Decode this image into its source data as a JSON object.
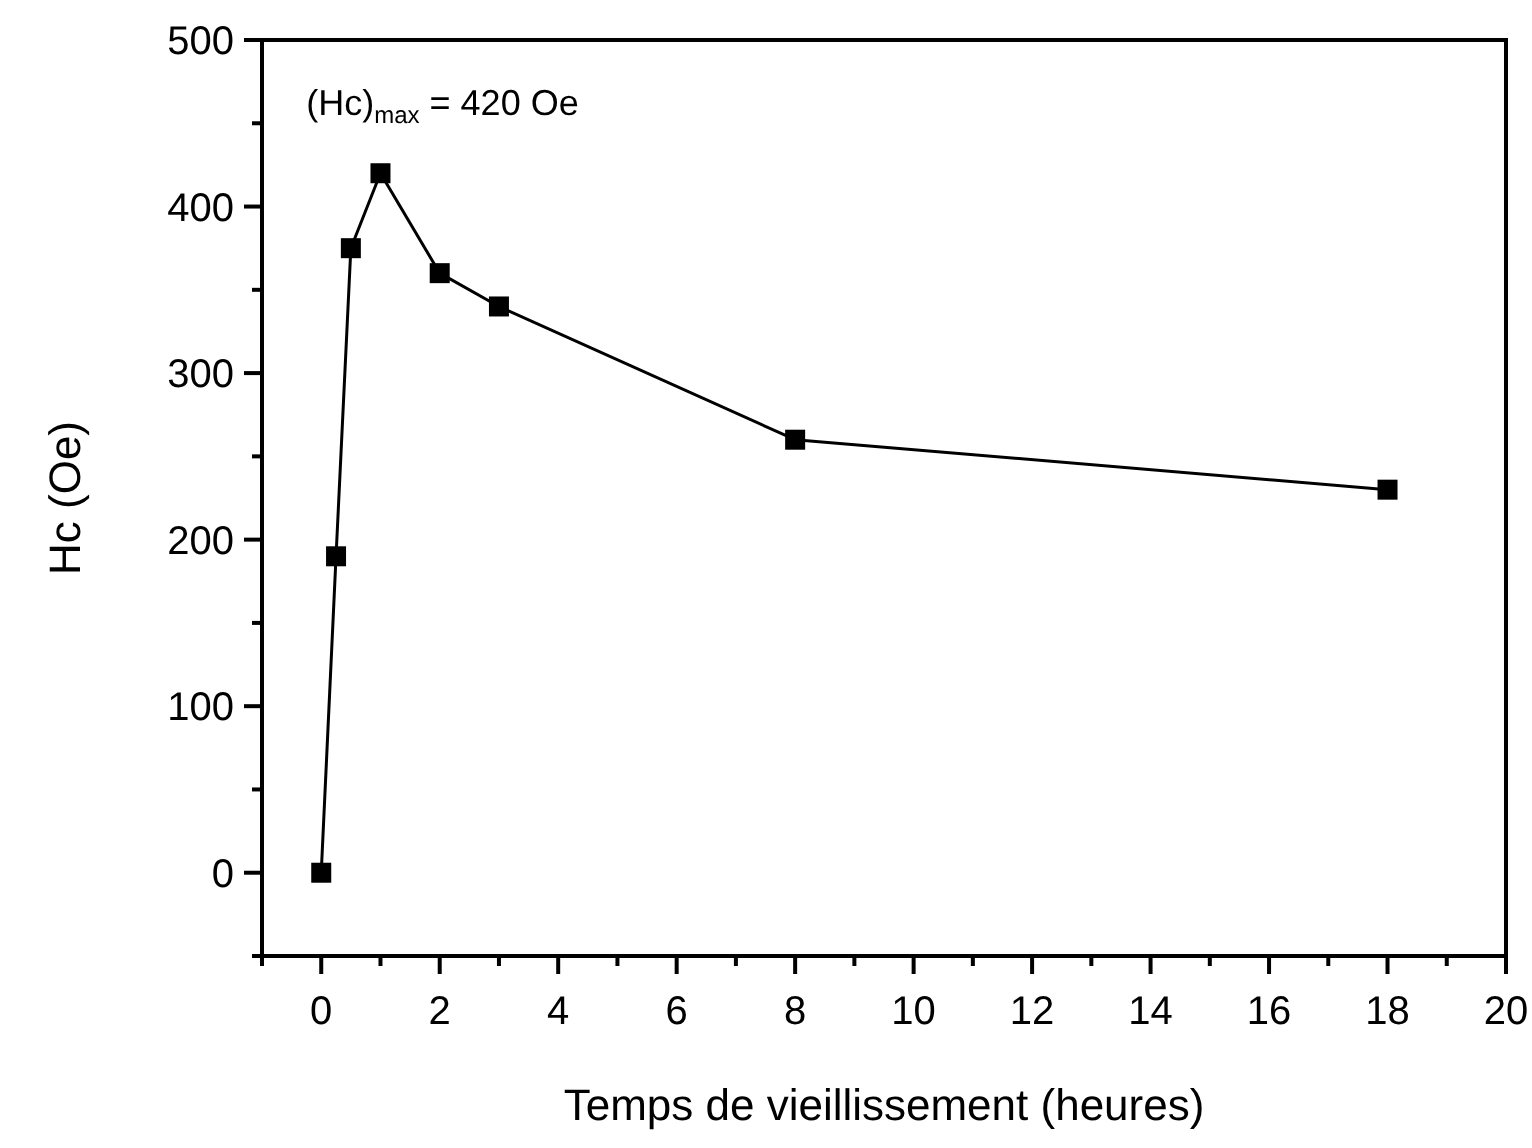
{
  "chart_data": {
    "type": "line",
    "xlabel": "Temps de vieillissement (heures)",
    "ylabel": "Hc (Oe)",
    "x": [
      0,
      0.25,
      0.5,
      1,
      2,
      3,
      8,
      18
    ],
    "series": [
      {
        "color": "#000000",
        "values": [
          0,
          190,
          375,
          420,
          360,
          340,
          260,
          230
        ]
      }
    ],
    "marker": "square",
    "line_style": "solid",
    "grid": false,
    "xlim": [
      -1,
      20
    ],
    "xticks": [
      {
        "value": -1,
        "label": null
      },
      0,
      {
        "value": 1,
        "label": null
      },
      2,
      {
        "value": 3,
        "label": null
      },
      4,
      {
        "value": 5,
        "label": null
      },
      6,
      {
        "value": 7,
        "label": null
      },
      8,
      {
        "value": 9,
        "label": null
      },
      10,
      {
        "value": 11,
        "label": null
      },
      12,
      {
        "value": 13,
        "label": null
      },
      14,
      {
        "value": 15,
        "label": null
      },
      16,
      {
        "value": 17,
        "label": null
      },
      18,
      {
        "value": 19,
        "label": null
      },
      20
    ],
    "ylim": [
      -50,
      500
    ],
    "yticks": [
      {
        "value": -50,
        "label": null
      },
      0,
      {
        "value": 50,
        "label": null
      },
      100,
      {
        "value": 150,
        "label": null
      },
      200,
      {
        "value": 250,
        "label": null
      },
      300,
      {
        "value": 350,
        "label": null
      },
      400,
      {
        "value": 450,
        "label": null
      },
      500
    ],
    "annotations": [
      {
        "text": "(Hc)$_{max}$ = 420 Oe",
        "x": 1,
        "y": 420
      }
    ]
  }
}
